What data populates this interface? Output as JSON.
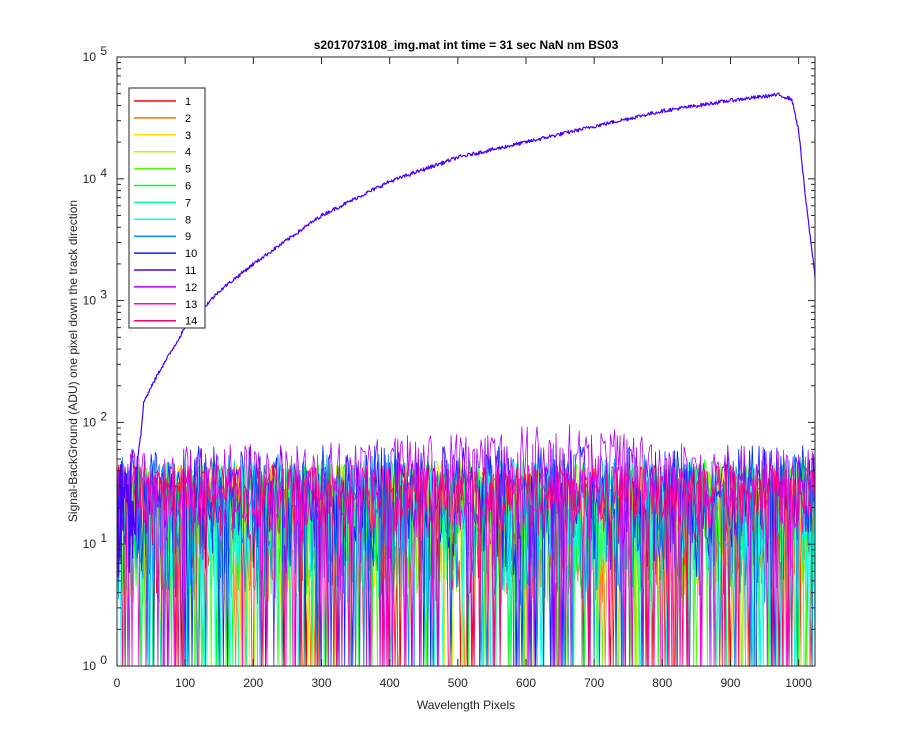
{
  "chart_data": {
    "type": "line",
    "title": "s2017073108_img.mat int time = 31 sec  NaN nm BS03",
    "xlabel": "Wavelength Pixels",
    "ylabel": "Signal-BackGround (ADU) one pixel down the track direction",
    "xlim": [
      0,
      1024
    ],
    "ylim": [
      1,
      100000
    ],
    "yscale": "log",
    "x_ticks": [
      0,
      100,
      200,
      300,
      400,
      500,
      600,
      700,
      800,
      900,
      1000
    ],
    "y_ticks": [
      1,
      10,
      100,
      1000,
      10000,
      100000
    ],
    "y_tick_labels": [
      {
        "base": "10",
        "exp": "0"
      },
      {
        "base": "10",
        "exp": "1"
      },
      {
        "base": "10",
        "exp": "2"
      },
      {
        "base": "10",
        "exp": "3"
      },
      {
        "base": "10",
        "exp": "4"
      },
      {
        "base": "10",
        "exp": "5"
      }
    ],
    "grid": false,
    "legend_position": "top-left",
    "series": [
      {
        "name": "1",
        "color": "#ff0000",
        "envelope": {
          "x": [
            0,
            1024
          ],
          "low": [
            3,
            3
          ],
          "high": [
            45,
            45
          ]
        }
      },
      {
        "name": "2",
        "color": "#ff6d00",
        "envelope": {
          "x": [
            0,
            1024
          ],
          "low": [
            3,
            3
          ],
          "high": [
            45,
            45
          ]
        }
      },
      {
        "name": "3",
        "color": "#ffdb00",
        "envelope": {
          "x": [
            0,
            1024
          ],
          "low": [
            3,
            3
          ],
          "high": [
            45,
            45
          ]
        }
      },
      {
        "name": "4",
        "color": "#b6ff00",
        "envelope": {
          "x": [
            0,
            1024
          ],
          "low": [
            3,
            3
          ],
          "high": [
            50,
            50
          ]
        }
      },
      {
        "name": "5",
        "color": "#49ff00",
        "envelope": {
          "x": [
            0,
            1024
          ],
          "low": [
            3,
            3
          ],
          "high": [
            50,
            50
          ]
        }
      },
      {
        "name": "6",
        "color": "#00ff24",
        "envelope": {
          "x": [
            0,
            1024
          ],
          "low": [
            3,
            3
          ],
          "high": [
            50,
            50
          ]
        }
      },
      {
        "name": "7",
        "color": "#00ff92",
        "envelope": {
          "x": [
            0,
            1024
          ],
          "low": [
            3,
            3
          ],
          "high": [
            50,
            50
          ]
        }
      },
      {
        "name": "8",
        "color": "#00ffff",
        "envelope": {
          "x": [
            0,
            1024
          ],
          "low": [
            3,
            3
          ],
          "high": [
            50,
            50
          ]
        }
      },
      {
        "name": "9",
        "color": "#0092ff",
        "envelope": {
          "x": [
            0,
            1024
          ],
          "low": [
            3,
            3
          ],
          "high": [
            55,
            55
          ]
        }
      },
      {
        "name": "10",
        "color": "#0024ff",
        "envelope": {
          "x": [
            0,
            1024
          ],
          "low": [
            5,
            5
          ],
          "high": [
            65,
            65
          ]
        }
      },
      {
        "name": "11",
        "color": "#4900ff",
        "points": [
          [
            0,
            30
          ],
          [
            28,
            40
          ],
          [
            40,
            150
          ],
          [
            60,
            250
          ],
          [
            100,
            600
          ],
          [
            150,
            1200
          ],
          [
            200,
            2000
          ],
          [
            300,
            5000
          ],
          [
            400,
            9500
          ],
          [
            500,
            15000
          ],
          [
            600,
            20000
          ],
          [
            700,
            27000
          ],
          [
            800,
            36000
          ],
          [
            900,
            44000
          ],
          [
            970,
            49000
          ],
          [
            990,
            45000
          ],
          [
            1000,
            25000
          ],
          [
            1010,
            7000
          ],
          [
            1024,
            1600
          ]
        ]
      },
      {
        "name": "12",
        "color": "#b600ff",
        "envelope": {
          "x": [
            0,
            100,
            300,
            450,
            550,
            650,
            750,
            850,
            1024
          ],
          "low": [
            10,
            10,
            12,
            15,
            15,
            15,
            15,
            12,
            10
          ],
          "high": [
            60,
            65,
            70,
            80,
            90,
            100,
            85,
            70,
            60
          ]
        }
      },
      {
        "name": "13",
        "color": "#ff00db",
        "envelope": {
          "x": [
            0,
            1024
          ],
          "low": [
            10,
            10
          ],
          "high": [
            45,
            45
          ]
        }
      },
      {
        "name": "14",
        "color": "#ff006d",
        "envelope": {
          "x": [
            0,
            1024
          ],
          "low": [
            10,
            10
          ],
          "high": [
            45,
            45
          ]
        }
      }
    ]
  }
}
